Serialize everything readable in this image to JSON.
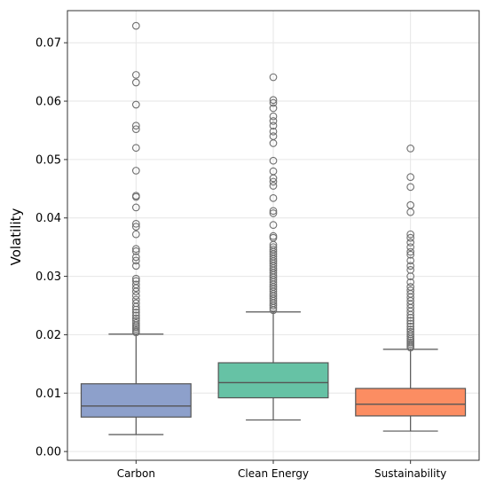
{
  "chart_data": {
    "type": "box",
    "title": "",
    "xlabel": "",
    "ylabel": "Volatility",
    "ylim": [
      -0.0015,
      0.0755
    ],
    "yticks": [
      0.0,
      0.01,
      0.02,
      0.03,
      0.04,
      0.05,
      0.06,
      0.07
    ],
    "ytick_labels": [
      "0.00",
      "0.01",
      "0.02",
      "0.03",
      "0.04",
      "0.05",
      "0.06",
      "0.07"
    ],
    "grid": true,
    "categories": [
      "Carbon",
      "Clean Energy",
      "Sustainability"
    ],
    "series": [
      {
        "category": "Carbon",
        "color": "#8da0cb",
        "whisker_low": 0.0029,
        "q1": 0.0059,
        "median": 0.0078,
        "q3": 0.0116,
        "whisker_high": 0.0201,
        "outliers": [
          0.0204,
          0.0207,
          0.021,
          0.0213,
          0.0216,
          0.022,
          0.0224,
          0.0228,
          0.0233,
          0.0238,
          0.0243,
          0.0248,
          0.0254,
          0.026,
          0.0267,
          0.0274,
          0.028,
          0.0286,
          0.0292,
          0.0296,
          0.0318,
          0.0327,
          0.0333,
          0.0343,
          0.0347,
          0.0372,
          0.0385,
          0.039,
          0.0418,
          0.0436,
          0.0438,
          0.0481,
          0.052,
          0.0552,
          0.0558,
          0.0594,
          0.0632,
          0.0645,
          0.0729
        ]
      },
      {
        "category": "Clean Energy",
        "color": "#66c2a5",
        "whisker_low": 0.0054,
        "q1": 0.0092,
        "median": 0.0118,
        "q3": 0.0152,
        "whisker_high": 0.0239,
        "outliers": [
          0.0242,
          0.0246,
          0.025,
          0.0254,
          0.0258,
          0.0262,
          0.0266,
          0.027,
          0.0274,
          0.0278,
          0.0282,
          0.0286,
          0.029,
          0.0294,
          0.0298,
          0.0302,
          0.0306,
          0.031,
          0.0314,
          0.0318,
          0.0322,
          0.0326,
          0.033,
          0.0334,
          0.0338,
          0.0342,
          0.0346,
          0.035,
          0.0354,
          0.0366,
          0.0369,
          0.0388,
          0.0408,
          0.0412,
          0.0434,
          0.0455,
          0.0462,
          0.0468,
          0.048,
          0.0498,
          0.0528,
          0.054,
          0.0548,
          0.0558,
          0.0566,
          0.0574,
          0.0588,
          0.0597,
          0.0602,
          0.0641
        ]
      },
      {
        "category": "Sustainability",
        "color": "#fc8d62",
        "whisker_low": 0.0035,
        "q1": 0.0061,
        "median": 0.0081,
        "q3": 0.0108,
        "whisker_high": 0.0175,
        "outliers": [
          0.0178,
          0.0181,
          0.0184,
          0.0187,
          0.019,
          0.0193,
          0.0197,
          0.0201,
          0.0205,
          0.0209,
          0.0214,
          0.0219,
          0.0224,
          0.0229,
          0.0234,
          0.024,
          0.0246,
          0.0252,
          0.0258,
          0.0264,
          0.027,
          0.0276,
          0.0282,
          0.029,
          0.03,
          0.0311,
          0.0318,
          0.0327,
          0.0337,
          0.0342,
          0.035,
          0.0358,
          0.0366,
          0.0372,
          0.041,
          0.0422,
          0.0453,
          0.047,
          0.0519
        ]
      }
    ]
  }
}
